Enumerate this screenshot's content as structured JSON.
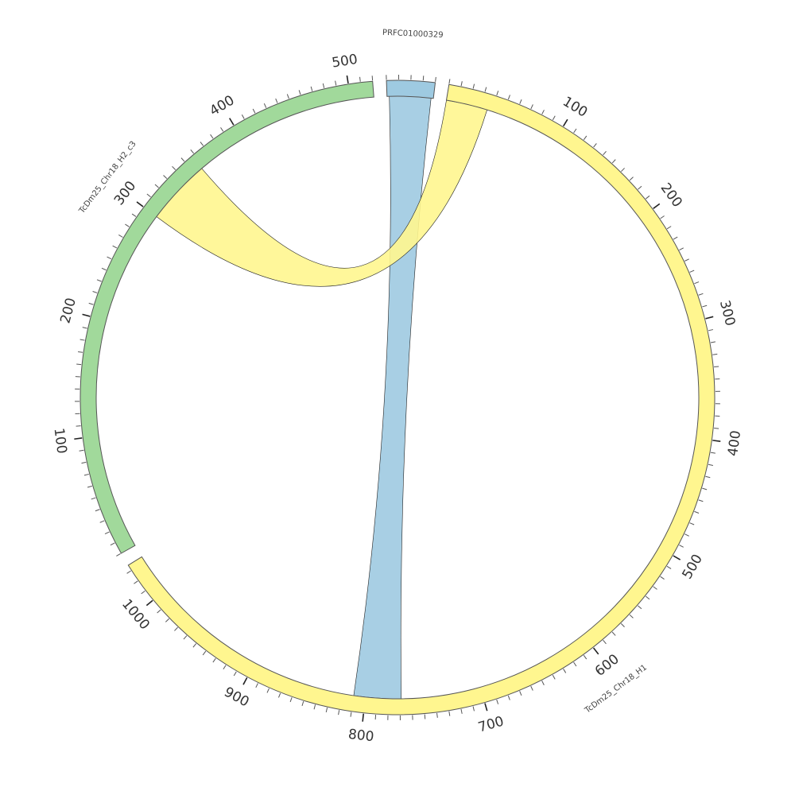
{
  "chart_data": {
    "type": "chord",
    "tick_interval": 10,
    "label_interval": 100,
    "segments": [
      {
        "id": "prfc",
        "name": "PRFC01000329",
        "length": 40,
        "color": "#9ecae1",
        "label_tick_max": 0
      },
      {
        "id": "h1",
        "name": "TcDm25_Chr18_H1",
        "length": 1035,
        "color": "#fff68f",
        "label_tick_max": 1000
      },
      {
        "id": "h2",
        "name": "TcDm25_Chr18_H2_c3",
        "length": 520,
        "color": "#a1d99b",
        "label_tick_max": 500
      }
    ],
    "links": [
      {
        "source": "prfc",
        "source_start": 2,
        "source_end": 38,
        "target": "h1",
        "target_start": 769,
        "target_end": 810,
        "color": "#9ecae1"
      },
      {
        "source": "h1",
        "source_start": 0,
        "source_end": 36,
        "target": "h2",
        "target_start": 300,
        "target_end": 357,
        "color": "#fff68f"
      }
    ]
  }
}
